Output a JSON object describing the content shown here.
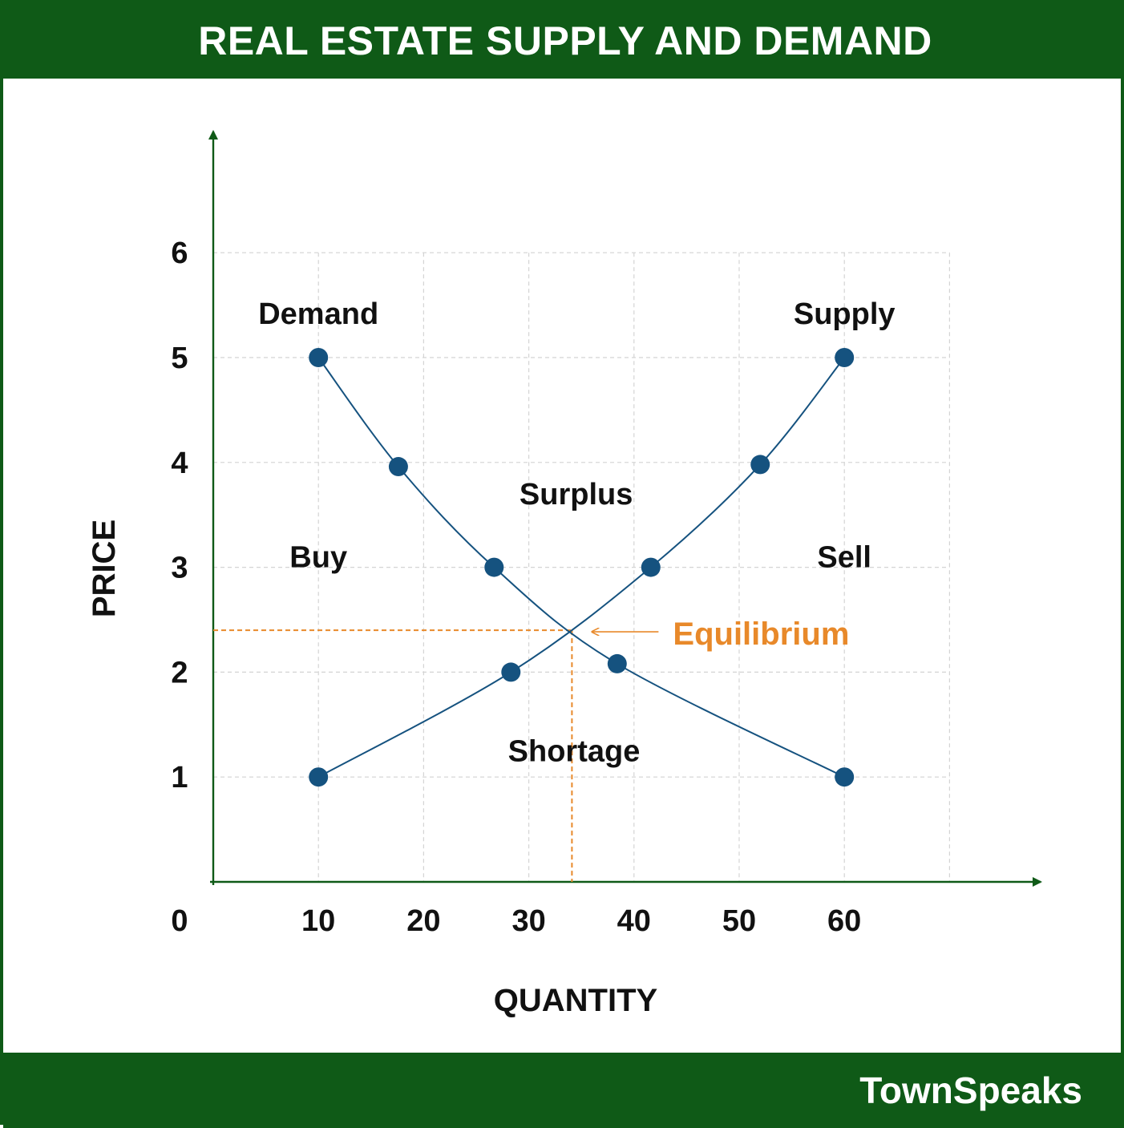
{
  "header": {
    "title": "REAL ESTATE SUPPLY AND DEMAND"
  },
  "footer": {
    "brand": "TownSpeaks"
  },
  "colors": {
    "brand_green": "#0f5a17",
    "series_blue": "#15527f",
    "equilibrium_orange": "#e8892a",
    "grid": "#d4d4d4"
  },
  "chart_data": {
    "type": "line",
    "title": "REAL ESTATE SUPPLY AND DEMAND",
    "xlabel": "QUANTITY",
    "ylabel": "PRICE",
    "xlim": [
      0,
      70
    ],
    "ylim": [
      0,
      6
    ],
    "x_ticks": [
      10,
      20,
      30,
      40,
      50,
      60
    ],
    "y_ticks": [
      1,
      2,
      3,
      4,
      5,
      6
    ],
    "origin_label": "0",
    "grid": true,
    "series": [
      {
        "name": "Demand",
        "color": "#15527f",
        "points": [
          [
            10,
            5.0
          ],
          [
            17.6,
            3.96
          ],
          [
            26.7,
            3.0
          ],
          [
            38.4,
            2.08
          ],
          [
            60,
            1.0
          ]
        ]
      },
      {
        "name": "Supply",
        "color": "#15527f",
        "points": [
          [
            10,
            1.0
          ],
          [
            28.3,
            2.0
          ],
          [
            41.6,
            3.0
          ],
          [
            52,
            3.98
          ],
          [
            60,
            5.0
          ]
        ]
      }
    ],
    "equilibrium": {
      "label": "Equilibrium",
      "x": 34.1,
      "y": 2.4
    },
    "annotations": [
      {
        "text": "Demand",
        "x": 10,
        "y": 5.42
      },
      {
        "text": "Supply",
        "x": 60,
        "y": 5.42
      },
      {
        "text": "Surplus",
        "x": 34.5,
        "y": 3.7
      },
      {
        "text": "Buy",
        "x": 10,
        "y": 3.1
      },
      {
        "text": "Sell",
        "x": 60,
        "y": 3.1
      },
      {
        "text": "Shortage",
        "x": 34.3,
        "y": 1.25
      }
    ]
  }
}
